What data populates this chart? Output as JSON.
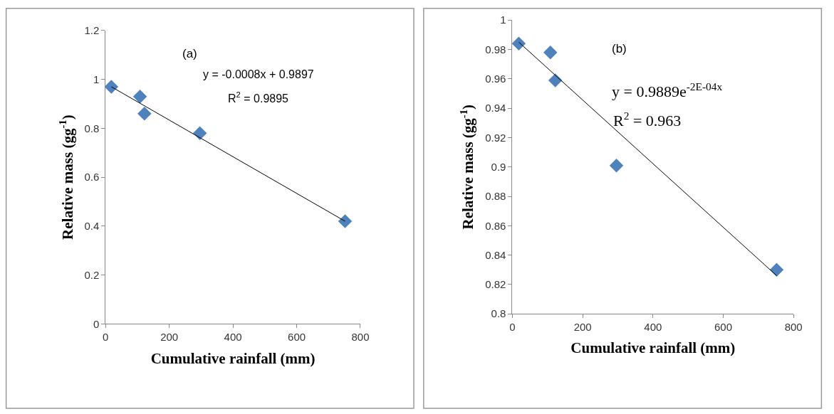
{
  "chart_data": [
    {
      "type": "scatter",
      "annotations": [
        "(a)",
        "y = -0.0008x + 0.9897",
        "R$^{2}$ = 0.9895"
      ],
      "xlabel": "Cumulative rainfall (mm)",
      "ylabel": "Relative mass (gg$^{-1}$)",
      "xlim": [
        0,
        800
      ],
      "xticks": [
        0,
        200,
        400,
        600,
        800
      ],
      "ylim": [
        0,
        1.2
      ],
      "yticks": [
        0,
        0.2,
        0.4,
        0.6,
        0.8,
        1,
        1.2
      ],
      "series": [
        {
          "color": "#4f81bd",
          "marker": "diamond",
          "x": [
            18,
            108,
            122,
            296,
            752
          ],
          "values": [
            0.97,
            0.93,
            0.86,
            0.78,
            0.42
          ]
        },
        {
          "type": "line",
          "marker": "none",
          "color": "#000000",
          "x": [
            18,
            752
          ],
          "values": [
            0.97,
            0.42
          ]
        }
      ]
    },
    {
      "type": "scatter",
      "annotations": [
        "(b)",
        "y = 0.9889e$^{-2E-04x}$",
        "R$^{2}$ = 0.963"
      ],
      "xlabel": "Cumulative rainfall (mm)",
      "ylabel": "Relative mass (gg$^{-1}$)",
      "xlim": [
        0,
        800
      ],
      "xticks": [
        0,
        200,
        400,
        600,
        800
      ],
      "ylim": [
        0.8,
        1
      ],
      "yticks": [
        0.8,
        0.82,
        0.84,
        0.86,
        0.88,
        0.9,
        0.92,
        0.94,
        0.96,
        0.98,
        1
      ],
      "series": [
        {
          "color": "#4f81bd",
          "marker": "diamond",
          "x": [
            18,
            108,
            122,
            296,
            752
          ],
          "values": [
            0.984,
            0.978,
            0.959,
            0.901,
            0.83
          ]
        },
        {
          "type": "line",
          "marker": "none",
          "color": "#000000",
          "x": [
            18,
            752
          ],
          "values": [
            0.985,
            0.826
          ]
        }
      ]
    }
  ]
}
